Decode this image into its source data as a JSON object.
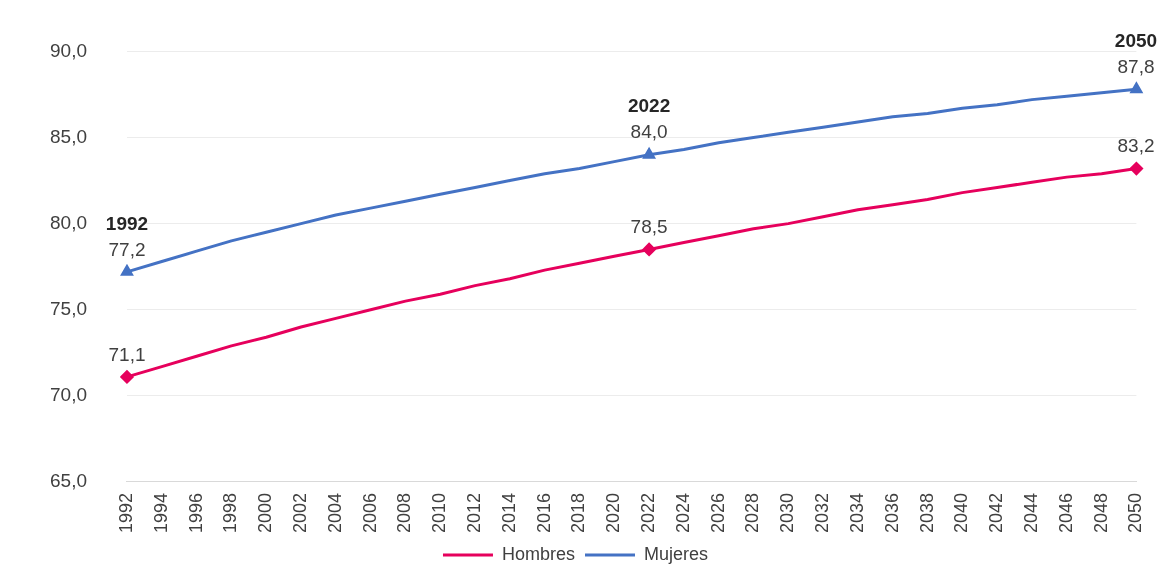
{
  "chart_data": {
    "type": "line",
    "categories": [
      "1992",
      "1994",
      "1996",
      "1998",
      "2000",
      "2002",
      "2004",
      "2006",
      "2008",
      "2010",
      "2012",
      "2014",
      "2016",
      "2018",
      "2020",
      "2022",
      "2024",
      "2026",
      "2028",
      "2030",
      "2032",
      "2034",
      "2036",
      "2038",
      "2040",
      "2042",
      "2044",
      "2046",
      "2048",
      "2050"
    ],
    "series": [
      {
        "name": "Hombres",
        "color": "#e6005c",
        "values": [
          71.1,
          71.7,
          72.3,
          72.9,
          73.4,
          74.0,
          74.5,
          75.0,
          75.5,
          75.9,
          76.4,
          76.8,
          77.3,
          77.7,
          78.1,
          78.5,
          78.9,
          79.3,
          79.7,
          80.0,
          80.4,
          80.8,
          81.1,
          81.4,
          81.8,
          82.1,
          82.4,
          82.7,
          82.9,
          83.2
        ],
        "value_labels": [
          "71,1",
          null,
          null,
          null,
          null,
          null,
          null,
          null,
          null,
          null,
          null,
          null,
          null,
          null,
          null,
          "78,5",
          null,
          null,
          null,
          null,
          null,
          null,
          null,
          null,
          null,
          null,
          null,
          null,
          null,
          "83,2"
        ]
      },
      {
        "name": "Mujeres",
        "color": "#4472c4",
        "values": [
          77.2,
          77.8,
          78.4,
          79.0,
          79.5,
          80.0,
          80.5,
          80.9,
          81.3,
          81.7,
          82.1,
          82.5,
          82.9,
          83.2,
          83.6,
          84.0,
          84.3,
          84.7,
          85.0,
          85.3,
          85.6,
          85.9,
          86.2,
          86.4,
          86.7,
          86.9,
          87.2,
          87.4,
          87.6,
          87.8
        ],
        "value_labels": [
          "77,2",
          null,
          null,
          null,
          null,
          null,
          null,
          null,
          null,
          null,
          null,
          null,
          null,
          null,
          null,
          "84,0",
          null,
          null,
          null,
          null,
          null,
          null,
          null,
          null,
          null,
          null,
          null,
          null,
          null,
          "87,8"
        ]
      }
    ],
    "ylim": [
      65,
      90
    ],
    "yticks": [
      {
        "value": 65,
        "label": "65,0"
      },
      {
        "value": 70,
        "label": "70,0"
      },
      {
        "value": 75,
        "label": "75,0"
      },
      {
        "value": 80,
        "label": "80,0"
      },
      {
        "value": 85,
        "label": "85,0"
      },
      {
        "value": 90,
        "label": "90,0"
      }
    ],
    "grid": "y",
    "legend": "bottom",
    "line_style": "solid",
    "annotations": [
      {
        "text": "1992",
        "x": "1992",
        "y": 77.2
      },
      {
        "text": "2022",
        "x": "2022",
        "y": 84.0
      },
      {
        "text": "2050",
        "x": "2050",
        "y": 87.8
      }
    ]
  }
}
